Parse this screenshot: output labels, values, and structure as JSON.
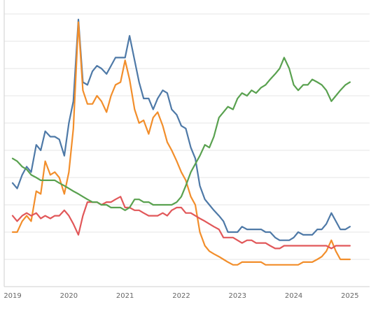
{
  "chart_data": {
    "type": "line",
    "title": "",
    "xlabel": "",
    "ylabel": "",
    "xlim": [
      2018.85,
      2025.35
    ],
    "ylim": [
      0,
      100
    ],
    "x_ticks": [
      2019,
      2020,
      2021,
      2022,
      2023,
      2024,
      2025
    ],
    "x_tick_labels": [
      "2019",
      "2020",
      "2021",
      "2022",
      "2023",
      "2024",
      "2025"
    ],
    "grid": "horizontal",
    "legend": "none",
    "series": [
      {
        "color": "#4e79a7",
        "x": [
          2019.0,
          2019.08,
          2019.17,
          2019.25,
          2019.33,
          2019.42,
          2019.5,
          2019.58,
          2019.67,
          2019.75,
          2019.83,
          2019.92,
          2020.0,
          2020.08,
          2020.17,
          2020.25,
          2020.33,
          2020.42,
          2020.5,
          2020.58,
          2020.67,
          2020.75,
          2020.83,
          2020.92,
          2021.0,
          2021.08,
          2021.17,
          2021.25,
          2021.33,
          2021.42,
          2021.5,
          2021.58,
          2021.67,
          2021.75,
          2021.83,
          2021.92,
          2022.0,
          2022.08,
          2022.17,
          2022.25,
          2022.33,
          2022.42,
          2022.5,
          2022.58,
          2022.67,
          2022.75,
          2022.83,
          2022.92,
          2023.0,
          2023.08,
          2023.17,
          2023.25,
          2023.33,
          2023.42,
          2023.5,
          2023.58,
          2023.67,
          2023.75,
          2023.83,
          2023.92,
          2024.0,
          2024.08,
          2024.17,
          2024.25,
          2024.33,
          2024.42,
          2024.5,
          2024.58,
          2024.67,
          2024.75,
          2024.83,
          2024.92,
          2025.0
        ],
        "y": [
          38,
          36,
          41,
          44,
          42,
          52,
          50,
          57,
          55,
          55,
          54,
          48,
          60,
          68,
          98,
          75,
          74,
          79,
          81,
          80,
          78,
          81,
          84,
          84,
          84,
          92,
          83,
          75,
          69,
          69,
          65,
          69,
          72,
          71,
          65,
          63,
          59,
          58,
          51,
          47,
          37,
          32,
          30,
          28,
          26,
          24,
          20,
          20,
          20,
          22,
          21,
          21,
          21,
          21,
          20,
          20,
          18,
          17,
          17,
          17,
          18,
          20,
          19,
          19,
          19,
          21,
          21,
          23,
          27,
          24,
          21,
          21,
          22
        ],
        "values_note": ""
      },
      {
        "color": "#f28e2b",
        "x": [
          2019.0,
          2019.08,
          2019.17,
          2019.25,
          2019.33,
          2019.42,
          2019.5,
          2019.58,
          2019.67,
          2019.75,
          2019.83,
          2019.92,
          2020.0,
          2020.08,
          2020.17,
          2020.25,
          2020.33,
          2020.42,
          2020.5,
          2020.58,
          2020.67,
          2020.75,
          2020.83,
          2020.92,
          2021.0,
          2021.08,
          2021.17,
          2021.25,
          2021.33,
          2021.42,
          2021.5,
          2021.58,
          2021.67,
          2021.75,
          2021.83,
          2021.92,
          2022.0,
          2022.08,
          2022.17,
          2022.25,
          2022.33,
          2022.42,
          2022.5,
          2022.58,
          2022.67,
          2022.75,
          2022.83,
          2022.92,
          2023.0,
          2023.08,
          2023.17,
          2023.25,
          2023.33,
          2023.42,
          2023.5,
          2023.58,
          2023.67,
          2023.75,
          2023.83,
          2023.92,
          2024.0,
          2024.08,
          2024.17,
          2024.25,
          2024.33,
          2024.42,
          2024.5,
          2024.58,
          2024.67,
          2024.75,
          2024.83,
          2024.92,
          2025.0
        ],
        "y": [
          20,
          20,
          24,
          26,
          24,
          35,
          34,
          46,
          41,
          42,
          40,
          34,
          42,
          58,
          97,
          72,
          67,
          67,
          70,
          68,
          64,
          70,
          74,
          75,
          83,
          76,
          65,
          60,
          61,
          56,
          62,
          64,
          59,
          53,
          50,
          46,
          42,
          39,
          33,
          30,
          20,
          15,
          13,
          12,
          11,
          10,
          9,
          8,
          8,
          9,
          9,
          9,
          9,
          9,
          8,
          8,
          8,
          8,
          8,
          8,
          8,
          8,
          9,
          9,
          9,
          10,
          11,
          13,
          17,
          13,
          10,
          10,
          10
        ],
        "values_note": ""
      },
      {
        "color": "#e15759",
        "x": [
          2019.0,
          2019.08,
          2019.17,
          2019.25,
          2019.33,
          2019.42,
          2019.5,
          2019.58,
          2019.67,
          2019.75,
          2019.83,
          2019.92,
          2020.0,
          2020.08,
          2020.17,
          2020.25,
          2020.33,
          2020.42,
          2020.5,
          2020.58,
          2020.67,
          2020.75,
          2020.83,
          2020.92,
          2021.0,
          2021.08,
          2021.17,
          2021.25,
          2021.33,
          2021.42,
          2021.5,
          2021.58,
          2021.67,
          2021.75,
          2021.83,
          2021.92,
          2022.0,
          2022.08,
          2022.17,
          2022.25,
          2022.33,
          2022.42,
          2022.5,
          2022.58,
          2022.67,
          2022.75,
          2022.83,
          2022.92,
          2023.0,
          2023.08,
          2023.17,
          2023.25,
          2023.33,
          2023.42,
          2023.5,
          2023.58,
          2023.67,
          2023.75,
          2023.83,
          2023.92,
          2024.0,
          2024.08,
          2024.17,
          2024.25,
          2024.33,
          2024.42,
          2024.5,
          2024.58,
          2024.67,
          2024.75,
          2024.83,
          2024.92,
          2025.0
        ],
        "y": [
          26,
          24,
          26,
          27,
          26,
          27,
          25,
          26,
          25,
          26,
          26,
          28,
          26,
          23,
          19,
          26,
          31,
          31,
          31,
          30,
          31,
          31,
          32,
          33,
          29,
          29,
          28,
          28,
          27,
          26,
          26,
          26,
          27,
          26,
          28,
          29,
          29,
          27,
          27,
          26,
          25,
          24,
          23,
          22,
          21,
          18,
          18,
          18,
          17,
          16,
          17,
          17,
          16,
          16,
          16,
          15,
          14,
          14,
          15,
          15,
          15,
          15,
          15,
          15,
          15,
          15,
          15,
          15,
          14,
          15,
          15,
          15,
          15
        ],
        "values_note": ""
      },
      {
        "color": "#59a14f",
        "x": [
          2019.0,
          2019.08,
          2019.17,
          2019.25,
          2019.33,
          2019.42,
          2019.5,
          2019.58,
          2019.67,
          2019.75,
          2019.83,
          2019.92,
          2020.0,
          2020.08,
          2020.17,
          2020.25,
          2020.33,
          2020.42,
          2020.5,
          2020.58,
          2020.67,
          2020.75,
          2020.83,
          2020.92,
          2021.0,
          2021.08,
          2021.17,
          2021.25,
          2021.33,
          2021.42,
          2021.5,
          2021.58,
          2021.67,
          2021.75,
          2021.83,
          2021.92,
          2022.0,
          2022.08,
          2022.17,
          2022.25,
          2022.33,
          2022.42,
          2022.5,
          2022.58,
          2022.67,
          2022.75,
          2022.83,
          2022.92,
          2023.0,
          2023.08,
          2023.17,
          2023.25,
          2023.33,
          2023.42,
          2023.5,
          2023.58,
          2023.67,
          2023.75,
          2023.83,
          2023.92,
          2024.0,
          2024.08,
          2024.17,
          2024.25,
          2024.33,
          2024.42,
          2024.5,
          2024.58,
          2024.67,
          2024.75,
          2024.83,
          2024.92,
          2025.0
        ],
        "y": [
          47,
          46,
          44,
          43,
          41,
          40,
          39,
          39,
          39,
          39,
          38,
          37,
          36,
          35,
          34,
          33,
          32,
          31,
          31,
          30,
          30,
          29,
          29,
          29,
          28,
          29,
          32,
          32,
          31,
          31,
          30,
          30,
          30,
          30,
          30,
          31,
          33,
          37,
          42,
          45,
          48,
          52,
          51,
          55,
          62,
          64,
          66,
          65,
          69,
          71,
          70,
          72,
          71,
          73,
          74,
          76,
          78,
          80,
          84,
          80,
          74,
          72,
          74,
          74,
          76,
          75,
          74,
          72,
          68,
          70,
          72,
          74,
          75
        ],
        "values_note": ""
      }
    ]
  }
}
